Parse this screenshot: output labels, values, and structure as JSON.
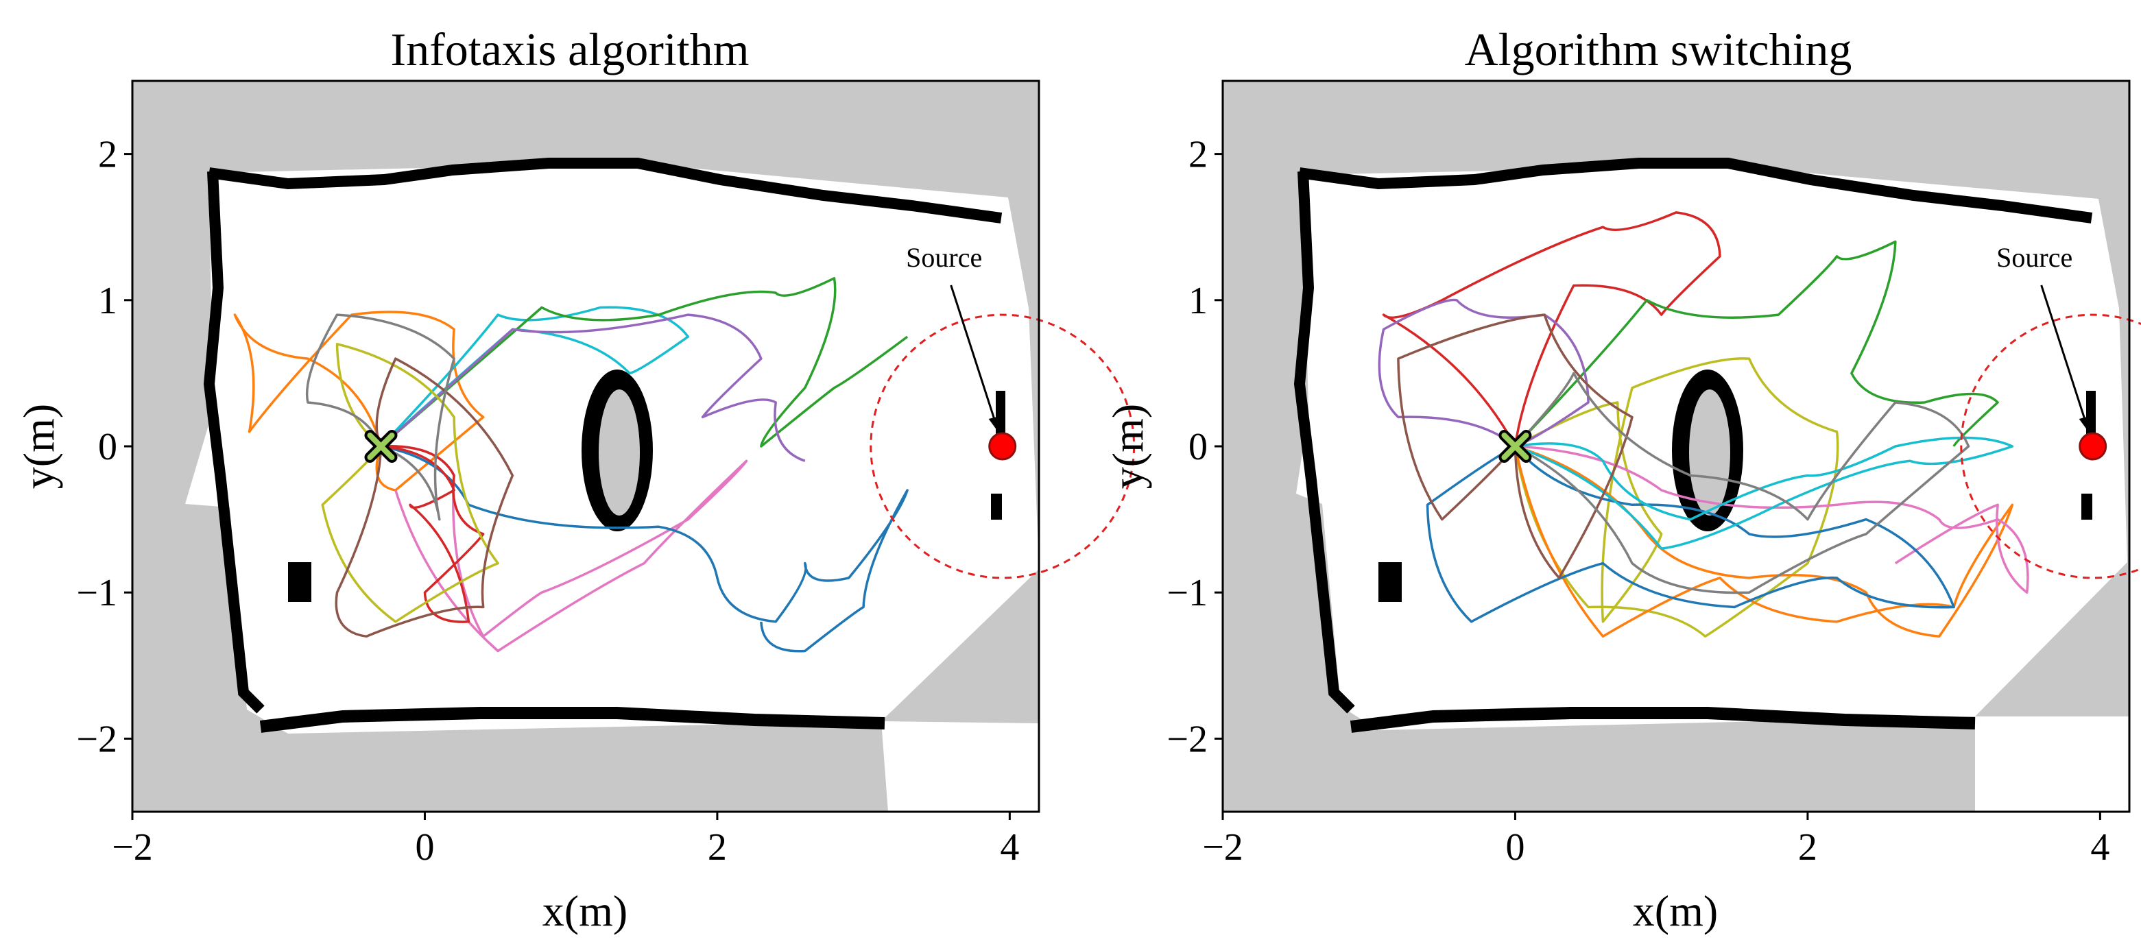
{
  "chart_data": [
    {
      "type": "line",
      "title": "Infotaxis algorithm",
      "xlabel": "x(m)",
      "ylabel": "y(m)",
      "xlim": [
        -2,
        4.2
      ],
      "ylim": [
        -2.5,
        2.5
      ],
      "xticks": [
        -2,
        0,
        2,
        4
      ],
      "xtick_labels": [
        "−2",
        "0",
        "2",
        "4"
      ],
      "yticks": [
        -2,
        -1,
        0,
        1,
        2
      ],
      "ytick_labels": [
        "−2",
        "−1",
        "0",
        "1",
        "2"
      ],
      "grid": false,
      "start_marker": {
        "x": -0.3,
        "y": 0.0
      },
      "source": {
        "x": 3.95,
        "y": 0.0,
        "radius": 0.9,
        "label": "Source"
      },
      "series": [
        {
          "color": "#ff7f0e",
          "x": [
            -0.3,
            -0.8,
            -1.3,
            -1.2,
            -0.5,
            0.2,
            0.4,
            -0.2,
            -0.3
          ],
          "y": [
            0.0,
            0.6,
            0.9,
            0.1,
            0.9,
            0.8,
            0.2,
            -0.3,
            0.0
          ]
        },
        {
          "color": "#17becf",
          "x": [
            -0.3,
            0.5,
            1.2,
            1.8,
            1.4,
            0.6,
            -0.3
          ],
          "y": [
            0.0,
            0.9,
            0.95,
            0.75,
            0.5,
            0.8,
            0.0
          ]
        },
        {
          "color": "#2ca02c",
          "x": [
            -0.3,
            0.8,
            1.6,
            2.4,
            2.8,
            2.6,
            2.3,
            2.8,
            3.3
          ],
          "y": [
            0.0,
            0.95,
            0.9,
            1.05,
            1.15,
            0.4,
            0.0,
            0.4,
            0.75
          ]
        },
        {
          "color": "#9467bd",
          "x": [
            -0.3,
            0.6,
            1.8,
            2.3,
            1.9,
            2.4,
            2.6
          ],
          "y": [
            0.0,
            0.8,
            0.9,
            0.6,
            0.2,
            0.3,
            -0.1
          ]
        },
        {
          "color": "#e377c2",
          "x": [
            -0.3,
            0.2,
            0.4,
            0.8,
            1.8,
            2.2,
            1.5,
            0.5,
            -0.2
          ],
          "y": [
            0.0,
            -0.2,
            -1.3,
            -1.0,
            -0.5,
            -0.1,
            -0.8,
            -1.4,
            -0.3
          ]
        },
        {
          "color": "#1f77b4",
          "x": [
            -0.3,
            0.3,
            1.6,
            2.0,
            2.4,
            2.6,
            2.9,
            3.3,
            3.0,
            2.6,
            2.3
          ],
          "y": [
            0.0,
            -0.4,
            -0.55,
            -0.9,
            -1.2,
            -0.8,
            -0.9,
            -0.3,
            -1.1,
            -1.4,
            -1.2
          ]
        },
        {
          "color": "#d62728",
          "x": [
            -0.3,
            0.2,
            0.4,
            0.0,
            0.3,
            -0.1,
            0.2,
            -0.3
          ],
          "y": [
            0.0,
            -0.2,
            -0.6,
            -1.0,
            -1.2,
            -0.4,
            -0.3,
            0.0
          ]
        },
        {
          "color": "#bcbd22",
          "x": [
            -0.3,
            -0.7,
            -0.2,
            0.5,
            0.2,
            -0.6,
            -0.3
          ],
          "y": [
            0.0,
            -0.4,
            -1.2,
            -0.8,
            0.2,
            0.7,
            0.0
          ]
        },
        {
          "color": "#8c564b",
          "x": [
            -0.3,
            -0.6,
            -0.4,
            0.4,
            0.6,
            -0.2,
            -0.3
          ],
          "y": [
            0.0,
            -1.0,
            -1.3,
            -1.1,
            -0.2,
            0.6,
            0.0
          ]
        },
        {
          "color": "#7f7f7f",
          "x": [
            -0.3,
            -0.8,
            -0.6,
            0.2,
            0.1,
            -0.3
          ],
          "y": [
            0.0,
            0.3,
            0.9,
            0.6,
            -0.5,
            0.0
          ]
        }
      ]
    },
    {
      "type": "line",
      "title": "Algorithm switching",
      "xlabel": "x(m)",
      "ylabel": "y(m)",
      "xlim": [
        -2,
        4.2
      ],
      "ylim": [
        -2.5,
        2.5
      ],
      "xticks": [
        -2,
        0,
        2,
        4
      ],
      "xtick_labels": [
        "−2",
        "0",
        "2",
        "4"
      ],
      "yticks": [
        -2,
        -1,
        0,
        1,
        2
      ],
      "ytick_labels": [
        "−2",
        "−1",
        "0",
        "1",
        "2"
      ],
      "grid": false,
      "start_marker": {
        "x": 0.0,
        "y": 0.0
      },
      "source": {
        "x": 3.95,
        "y": 0.0,
        "radius": 0.9,
        "label": "Source"
      },
      "series": [
        {
          "color": "#d62728",
          "x": [
            0.0,
            -0.9,
            -0.5,
            0.6,
            1.1,
            1.4,
            1.0,
            0.4,
            0.0
          ],
          "y": [
            0.0,
            0.9,
            1.0,
            1.5,
            1.6,
            1.3,
            0.9,
            1.1,
            0.0
          ]
        },
        {
          "color": "#2ca02c",
          "x": [
            0.0,
            0.9,
            1.8,
            2.2,
            2.6,
            2.3,
            2.8,
            3.3,
            3.0
          ],
          "y": [
            0.0,
            1.0,
            0.9,
            1.3,
            1.4,
            0.5,
            0.3,
            0.3,
            0.0
          ]
        },
        {
          "color": "#bcbd22",
          "x": [
            0.0,
            0.7,
            1.0,
            0.6,
            0.8,
            1.6,
            2.2,
            2.0,
            1.3,
            0.5,
            0.0
          ],
          "y": [
            0.0,
            0.3,
            -0.6,
            -1.2,
            0.4,
            0.6,
            0.1,
            -0.8,
            -1.3,
            -1.1,
            0.0
          ]
        },
        {
          "color": "#ff7f0e",
          "x": [
            0.0,
            0.9,
            1.6,
            2.4,
            2.9,
            3.4,
            3.0,
            2.2,
            1.4,
            0.6,
            0.0
          ],
          "y": [
            0.0,
            -0.6,
            -0.9,
            -1.0,
            -1.3,
            -0.4,
            -1.1,
            -1.2,
            -0.9,
            -1.3,
            0.0
          ]
        },
        {
          "color": "#e377c2",
          "x": [
            0.0,
            1.0,
            2.2,
            2.9,
            3.3,
            3.5,
            3.3,
            2.6
          ],
          "y": [
            0.0,
            -0.3,
            -0.4,
            -0.5,
            -0.5,
            -1.0,
            -0.4,
            -0.8
          ]
        },
        {
          "color": "#1f77b4",
          "x": [
            0.0,
            -0.6,
            -0.3,
            0.6,
            1.5,
            2.2,
            3.0,
            2.4,
            1.6,
            0.8,
            0.0
          ],
          "y": [
            0.0,
            -0.4,
            -1.2,
            -0.8,
            -1.1,
            -0.9,
            -1.1,
            -0.5,
            -0.6,
            -0.4,
            0.0
          ]
        },
        {
          "color": "#9467bd",
          "x": [
            0.0,
            -0.8,
            -0.9,
            -0.4,
            0.2,
            0.5,
            0.0
          ],
          "y": [
            0.0,
            0.2,
            0.8,
            1.0,
            0.9,
            0.3,
            0.0
          ]
        },
        {
          "color": "#17becf",
          "x": [
            0.0,
            0.6,
            1.2,
            2.0,
            2.6,
            3.4,
            2.7,
            1.8,
            1.0,
            0.0
          ],
          "y": [
            0.0,
            -0.1,
            -0.5,
            -0.2,
            0.0,
            0.0,
            -0.1,
            -0.4,
            -0.7,
            0.0
          ]
        },
        {
          "color": "#8c564b",
          "x": [
            0.0,
            -0.5,
            -0.8,
            0.2,
            0.8,
            0.3,
            0.0
          ],
          "y": [
            0.0,
            -0.5,
            0.6,
            0.9,
            0.2,
            -0.9,
            0.0
          ]
        },
        {
          "color": "#7f7f7f",
          "x": [
            0.0,
            0.4,
            1.2,
            2.0,
            2.6,
            3.1,
            2.4,
            1.6,
            0.8,
            0.0
          ],
          "y": [
            0.0,
            0.5,
            -0.2,
            -0.5,
            0.3,
            0.0,
            -0.6,
            -1.0,
            -0.8,
            0.0
          ]
        }
      ]
    }
  ]
}
